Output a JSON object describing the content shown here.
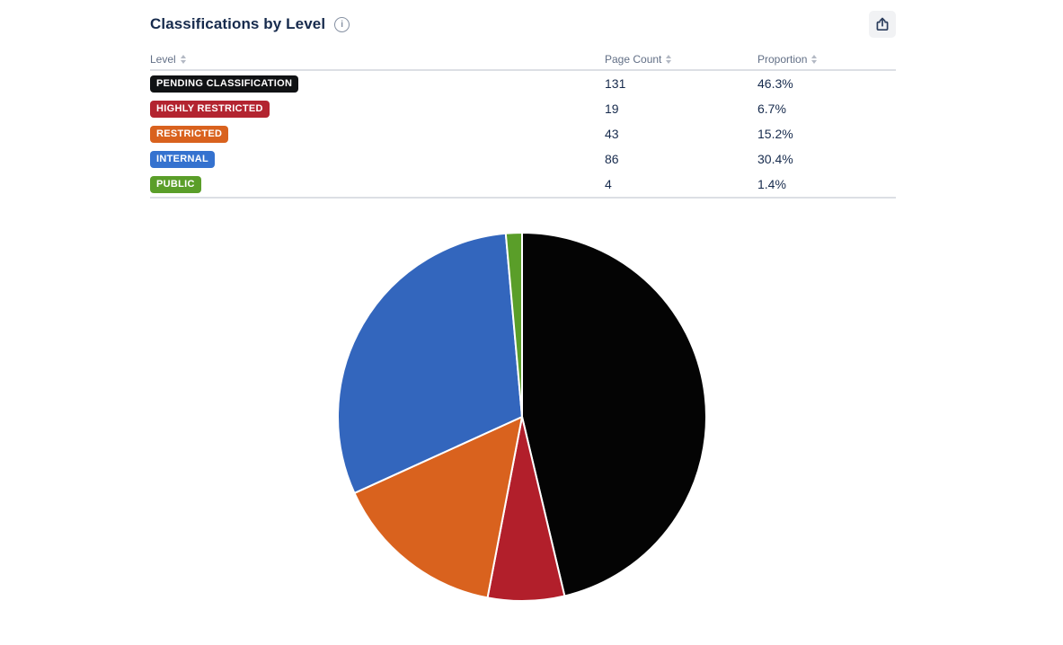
{
  "panel": {
    "title": "Classifications by Level",
    "info_glyph": "i"
  },
  "table": {
    "columns": [
      "Level",
      "Page Count",
      "Proportion"
    ],
    "rows": [
      {
        "level": "PENDING CLASSIFICATION",
        "badge_color": "#101214",
        "page_count": "131",
        "proportion": "46.3%"
      },
      {
        "level": "HIGHLY RESTRICTED",
        "badge_color": "#b32430",
        "page_count": "19",
        "proportion": "6.7%"
      },
      {
        "level": "RESTRICTED",
        "badge_color": "#d9621e",
        "page_count": "43",
        "proportion": "15.2%"
      },
      {
        "level": "INTERNAL",
        "badge_color": "#3572cf",
        "page_count": "86",
        "proportion": "30.4%"
      },
      {
        "level": "PUBLIC",
        "badge_color": "#5a9e29",
        "page_count": "4",
        "proportion": "1.4%"
      }
    ]
  },
  "chart_data": {
    "type": "pie",
    "title": "Classifications by Level",
    "categories": [
      "PENDING CLASSIFICATION",
      "HIGHLY RESTRICTED",
      "RESTRICTED",
      "INTERNAL",
      "PUBLIC"
    ],
    "values": [
      131,
      19,
      43,
      86,
      4
    ],
    "proportions_pct": [
      46.3,
      6.7,
      15.2,
      30.4,
      1.4
    ],
    "colors": [
      "#040404",
      "#b21f2b",
      "#d9621e",
      "#3366bd",
      "#5a9e29"
    ],
    "start_angle_deg": 0,
    "direction": "clockwise",
    "slice_border_color": "#ffffff",
    "slice_border_width": 2,
    "legend_position": "none"
  },
  "colors": {
    "title_text": "#172b4d",
    "header_text": "#626f86",
    "cell_text": "#172b4d",
    "divider": "#dcdfe4",
    "export_button_bg": "#f1f2f4",
    "icon_color": "#44546f",
    "background": "#ffffff"
  }
}
